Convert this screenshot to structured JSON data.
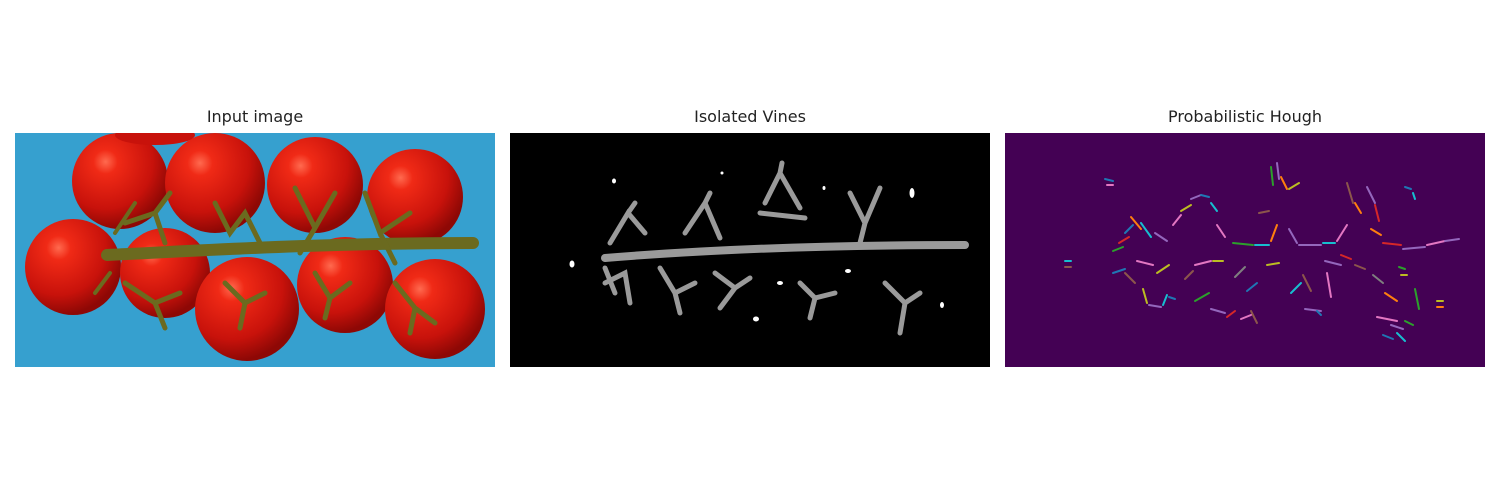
{
  "panels": [
    {
      "title": "Input image",
      "content": "tomato-vine-photo"
    },
    {
      "title": "Isolated Vines",
      "content": "vine-mask"
    },
    {
      "title": "Probabilistic Hough",
      "content": "hough-line-segments"
    }
  ],
  "colors": {
    "tray_blue": "#3aa6d4",
    "tomato_red": "#d3170e",
    "vine_green": "#6b6a1f",
    "mask_background": "#000000",
    "mask_foreground": "#9a9a9a",
    "hough_background": "#440154",
    "segment_palette": [
      "#1f77b4",
      "#ff7f0e",
      "#2ca02c",
      "#d62728",
      "#9467bd",
      "#8c564b",
      "#e377c2",
      "#7f7f7f",
      "#bcbd22",
      "#17becf"
    ]
  }
}
